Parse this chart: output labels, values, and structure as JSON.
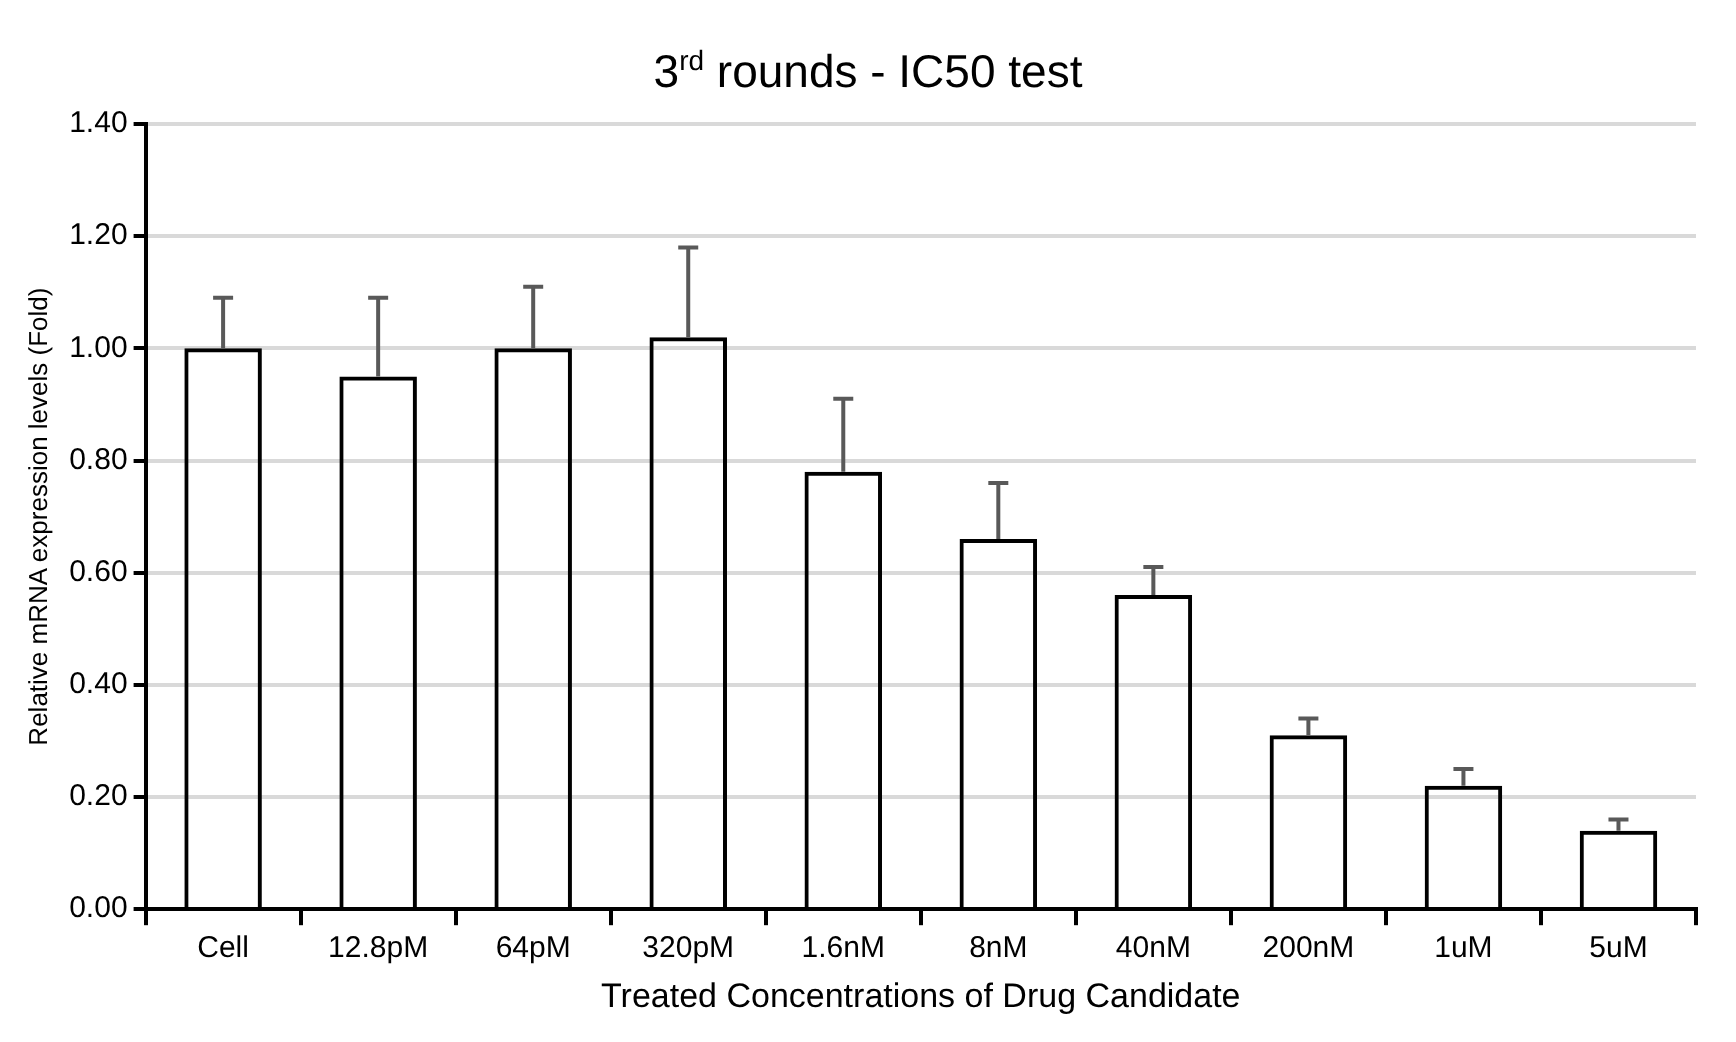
{
  "chart_data": {
    "type": "bar",
    "title": "3$^{rd}$ rounds - IC50 test",
    "xlabel": "Treated Concentrations of Drug Candidate",
    "ylabel": "Relative mRNA expression levels (Fold)",
    "categories": [
      "Cell",
      "12.8pM",
      "64pM",
      "320pM",
      "1.6nM",
      "8nM",
      "40nM",
      "200nM",
      "1uM",
      "5uM"
    ],
    "values": [
      1.0,
      0.95,
      1.0,
      1.02,
      0.78,
      0.66,
      0.56,
      0.31,
      0.22,
      0.14
    ],
    "errors": [
      [
        1.0,
        1.09
      ],
      [
        0.95,
        1.09
      ],
      [
        1.0,
        1.11
      ],
      [
        1.02,
        1.18
      ],
      [
        0.78,
        0.91
      ],
      [
        0.66,
        0.76
      ],
      [
        0.56,
        0.61
      ],
      [
        0.31,
        0.34
      ],
      [
        0.22,
        0.25
      ],
      [
        0.14,
        0.16
      ]
    ],
    "color": "#000000",
    "ylim": [
      0,
      1.4
    ],
    "yticks": [
      {
        "value": 0,
        "label": "0.00"
      },
      {
        "value": 0.2,
        "label": "0.20"
      },
      {
        "value": 0.4,
        "label": "0.40"
      },
      {
        "value": 0.6,
        "label": "0.60"
      },
      {
        "value": 0.8,
        "label": "0.80"
      },
      {
        "value": 1,
        "label": "1.00"
      },
      {
        "value": 1.2,
        "label": "1.20"
      },
      {
        "value": 1.4,
        "label": "1.40"
      }
    ],
    "grid": "y",
    "legend": false
  }
}
